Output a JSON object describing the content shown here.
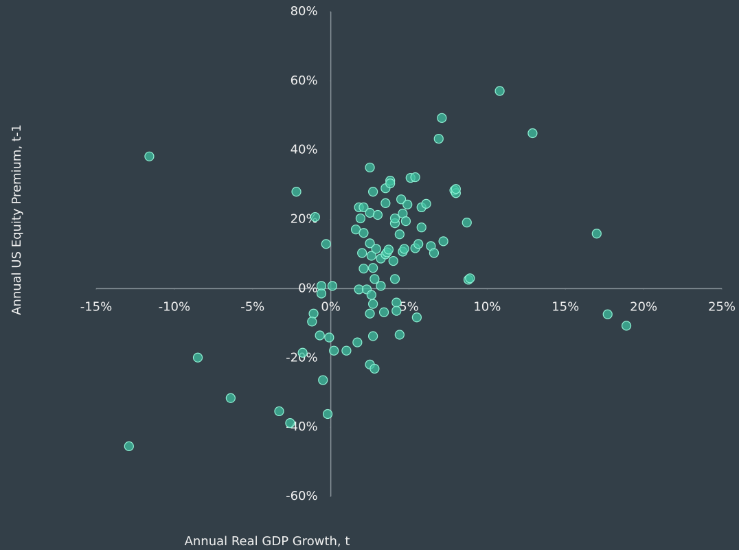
{
  "chart_data": {
    "type": "scatter",
    "x_label": "Annual Real GDP Growth, t",
    "y_label": "Annual US Equity Premium, t-1",
    "x": [
      -11.6,
      -12.9,
      -8.5,
      -6.4,
      -3.3,
      -2.6,
      -2.2,
      -1.0,
      -1.8,
      -0.7,
      -0.6,
      -0.6,
      -1.1,
      -1.2,
      -0.3,
      -0.5,
      -0.2,
      -0.1,
      0.1,
      0.2,
      1.0,
      1.7,
      2.5,
      1.6,
      1.8,
      2.1,
      1.9,
      2.1,
      2.0,
      2.1,
      1.8,
      2.5,
      2.5,
      2.6,
      2.7,
      3.0,
      2.7,
      2.8,
      2.9,
      2.3,
      2.6,
      2.7,
      2.5,
      2.7,
      2.5,
      2.8,
      3.2,
      3.2,
      3.4,
      3.5,
      3.5,
      3.5,
      3.6,
      3.7,
      3.8,
      3.8,
      4.0,
      4.1,
      4.1,
      4.1,
      4.2,
      4.2,
      4.4,
      4.4,
      4.5,
      4.6,
      4.8,
      4.6,
      4.7,
      4.9,
      5.1,
      5.4,
      5.4,
      5.5,
      5.6,
      5.8,
      5.8,
      6.1,
      6.4,
      6.6,
      6.9,
      7.1,
      7.2,
      7.9,
      8.0,
      8.0,
      8.7,
      8.8,
      8.9,
      10.8,
      12.9,
      17.0,
      17.7,
      18.9
    ],
    "values": [
      38.2,
      -45.5,
      -19.9,
      -31.6,
      -35.4,
      -38.8,
      28.0,
      20.7,
      -18.5,
      -13.5,
      0.8,
      -1.4,
      -7.2,
      -9.5,
      12.9,
      -26.4,
      -36.2,
      -14.1,
      0.8,
      -17.9,
      -17.9,
      -15.5,
      35.0,
      17.1,
      23.5,
      23.5,
      20.3,
      16.1,
      10.3,
      5.8,
      -0.2,
      21.9,
      13.1,
      9.5,
      28.0,
      21.3,
      6.0,
      2.8,
      11.5,
      -0.2,
      -1.8,
      -4.4,
      -7.2,
      -13.7,
      -21.9,
      -23.1,
      8.7,
      0.8,
      -6.8,
      29.0,
      24.7,
      9.9,
      10.5,
      11.3,
      31.2,
      30.4,
      8.0,
      18.9,
      20.3,
      2.8,
      -4.0,
      -6.4,
      -13.3,
      15.7,
      25.8,
      21.7,
      19.5,
      10.7,
      11.5,
      24.3,
      32.0,
      32.2,
      11.7,
      -8.3,
      12.9,
      23.5,
      17.7,
      24.5,
      12.3,
      10.3,
      43.3,
      49.3,
      13.7,
      28.4,
      27.6,
      28.8,
      19.1,
      2.6,
      3.0,
      57.1,
      44.9,
      15.9,
      -7.4,
      -10.7
    ],
    "color": "#3fbf9f",
    "edge_color": "#8ff0d4",
    "xlim": [
      -15,
      25
    ],
    "xticks": [
      {
        "value": -15,
        "label": "-15%"
      },
      {
        "value": -10,
        "label": "-10%"
      },
      {
        "value": -5,
        "label": "-5%"
      },
      {
        "value": 0,
        "label": "0%"
      },
      {
        "value": 5,
        "label": "5%"
      },
      {
        "value": 10,
        "label": "10%"
      },
      {
        "value": 15,
        "label": "15%"
      },
      {
        "value": 20,
        "label": "20%"
      },
      {
        "value": 25,
        "label": "25%"
      }
    ],
    "ylim": [
      -60,
      80
    ],
    "yticks": [
      {
        "value": -60,
        "label": "-60%"
      },
      {
        "value": -40,
        "label": "-40%"
      },
      {
        "value": -20,
        "label": "-20%"
      },
      {
        "value": 0,
        "label": "0%"
      },
      {
        "value": 20,
        "label": "20%"
      },
      {
        "value": 40,
        "label": "40%"
      },
      {
        "value": 60,
        "label": "60%"
      },
      {
        "value": 80,
        "label": "80%"
      }
    ]
  }
}
